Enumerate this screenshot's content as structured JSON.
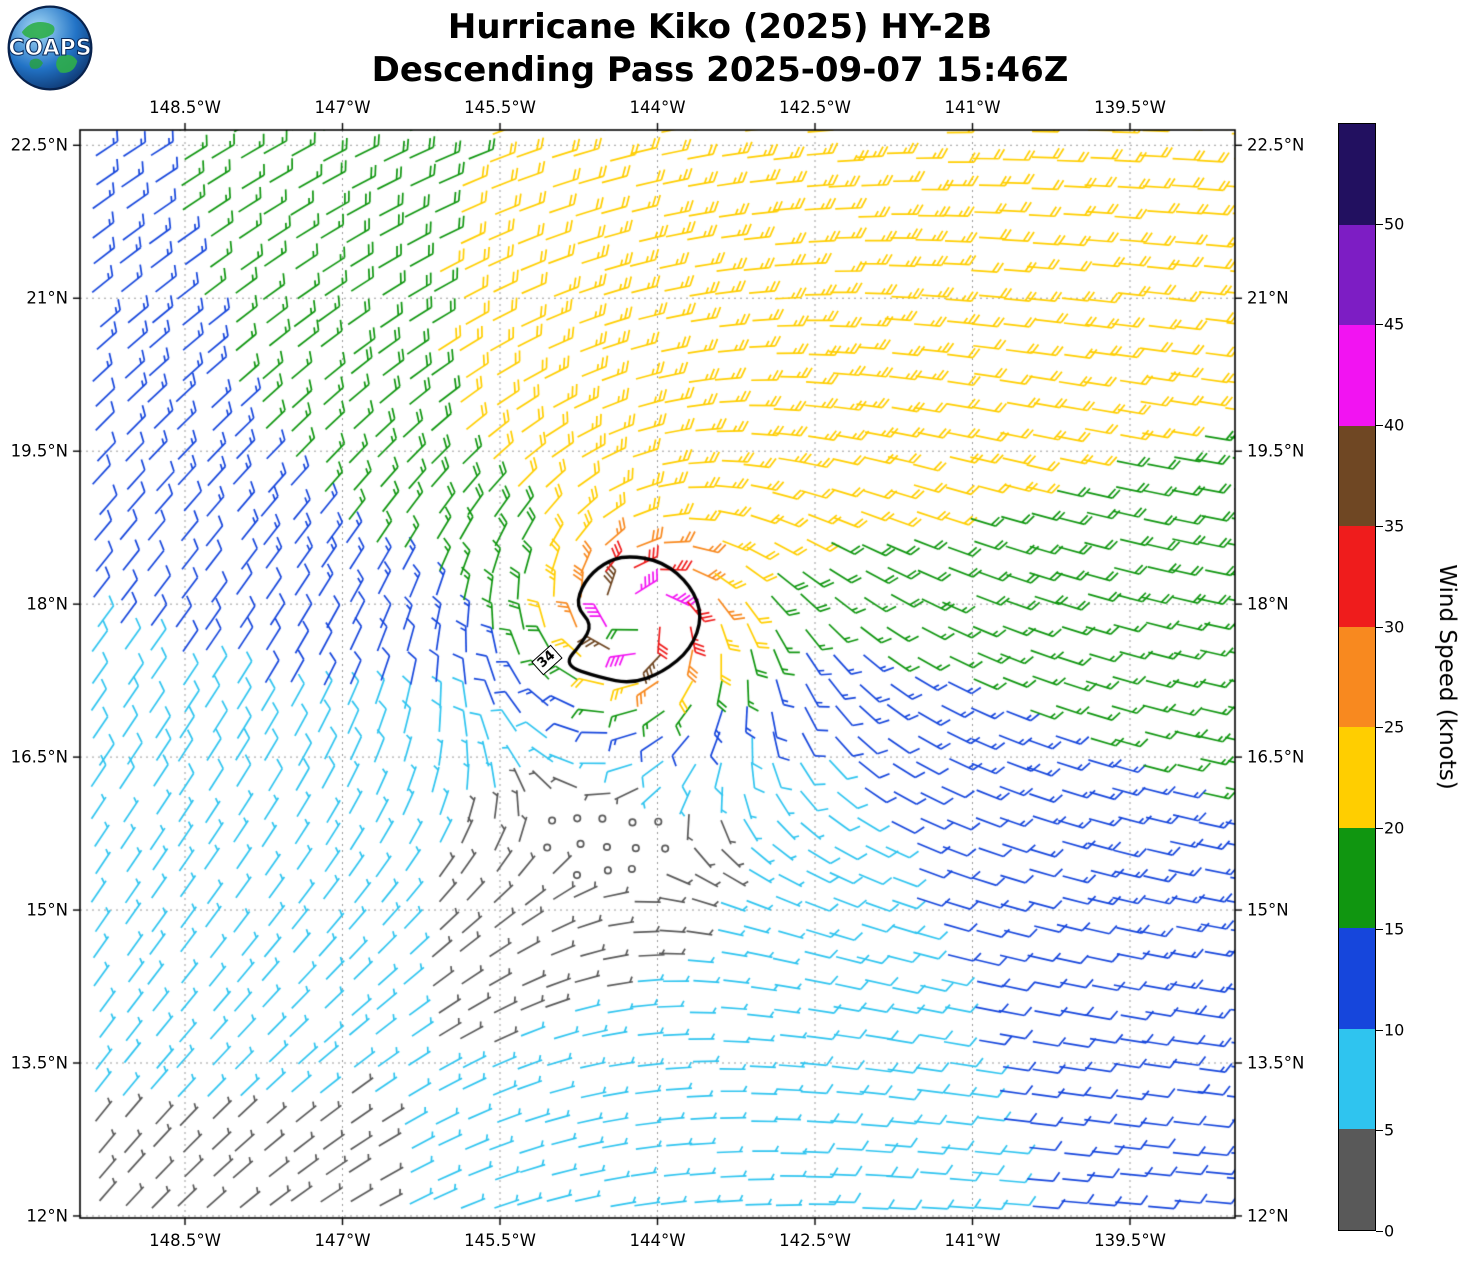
{
  "header": {
    "title_line1": "Hurricane Kiko (2025) HY-2B",
    "title_line2": "Descending Pass 2025-09-07 15:46Z"
  },
  "logo": {
    "text": "COAPS"
  },
  "axes": {
    "lon_range": [
      -149.5,
      -138.5
    ],
    "lat_range": [
      11.98,
      22.65
    ],
    "lon_ticks": [
      {
        "value": -148.5,
        "label": "148.5°W"
      },
      {
        "value": -147.0,
        "label": "147°W"
      },
      {
        "value": -145.5,
        "label": "145.5°W"
      },
      {
        "value": -144.0,
        "label": "144°W"
      },
      {
        "value": -142.5,
        "label": "142.5°W"
      },
      {
        "value": -141.0,
        "label": "141°W"
      },
      {
        "value": -139.5,
        "label": "139.5°W"
      }
    ],
    "lat_ticks": [
      {
        "value": 22.5,
        "label": "22.5°N"
      },
      {
        "value": 21.0,
        "label": "21°N"
      },
      {
        "value": 19.5,
        "label": "19.5°N"
      },
      {
        "value": 18.0,
        "label": "18°N"
      },
      {
        "value": 16.5,
        "label": "16.5°N"
      },
      {
        "value": 15.0,
        "label": "15°N"
      },
      {
        "value": 13.5,
        "label": "13.5°N"
      },
      {
        "value": 12.0,
        "label": "12°N"
      }
    ],
    "grid_on": true
  },
  "colorbar": {
    "label": "Wind Speed (knots)",
    "max": 55,
    "ticks": [
      {
        "value": 0,
        "label": "0"
      },
      {
        "value": 5,
        "label": "5"
      },
      {
        "value": 10,
        "label": "10"
      },
      {
        "value": 15,
        "label": "15"
      },
      {
        "value": 20,
        "label": "20"
      },
      {
        "value": 25,
        "label": "25"
      },
      {
        "value": 30,
        "label": "30"
      },
      {
        "value": 35,
        "label": "35"
      },
      {
        "value": 40,
        "label": "40"
      },
      {
        "value": 45,
        "label": "45"
      },
      {
        "value": 50,
        "label": "50"
      }
    ],
    "segments": [
      {
        "from": 0,
        "to": 5,
        "color": "#595959"
      },
      {
        "from": 5,
        "to": 10,
        "color": "#2fc4ef"
      },
      {
        "from": 10,
        "to": 15,
        "color": "#1646dc"
      },
      {
        "from": 15,
        "to": 20,
        "color": "#109610"
      },
      {
        "from": 20,
        "to": 25,
        "color": "#ffce00"
      },
      {
        "from": 25,
        "to": 30,
        "color": "#f8891f"
      },
      {
        "from": 30,
        "to": 35,
        "color": "#ef1c1c"
      },
      {
        "from": 35,
        "to": 40,
        "color": "#6f4723"
      },
      {
        "from": 40,
        "to": 45,
        "color": "#f213f2"
      },
      {
        "from": 45,
        "to": 50,
        "color": "#7d1dc4"
      },
      {
        "from": 50,
        "to": 55,
        "color": "#221060"
      }
    ]
  },
  "chart_data": {
    "type": "wind_barb_map",
    "title": "Hurricane Kiko (2025) HY-2B Descending Pass 2025-09-07 15:46Z",
    "units": "knots",
    "storm_center": {
      "lon": -144.15,
      "lat": 17.85
    },
    "speed_bins_kt": [
      0,
      5,
      10,
      15,
      20,
      25,
      30,
      35,
      40,
      45,
      50,
      55
    ],
    "bin_colors": [
      "#595959",
      "#2fc4ef",
      "#1646dc",
      "#109610",
      "#ffce00",
      "#f8891f",
      "#ef1c1c",
      "#6f4723",
      "#f213f2",
      "#7d1dc4",
      "#221060"
    ],
    "contour": {
      "value": 34,
      "label": "34",
      "label_pos": [
        -145.05,
        17.45
      ],
      "label_rotation_deg": -42,
      "points": [
        [
          -144.3,
          18.48
        ],
        [
          -143.95,
          18.42
        ],
        [
          -143.68,
          18.18
        ],
        [
          -143.57,
          17.88
        ],
        [
          -143.68,
          17.56
        ],
        [
          -143.95,
          17.33
        ],
        [
          -144.25,
          17.22
        ],
        [
          -144.55,
          17.28
        ],
        [
          -144.9,
          17.4
        ],
        [
          -144.72,
          17.62
        ],
        [
          -144.62,
          17.8
        ],
        [
          -144.78,
          17.98
        ],
        [
          -144.7,
          18.22
        ],
        [
          -144.52,
          18.4
        ]
      ]
    },
    "grid": {
      "lon_start": -149.35,
      "lon_step": 0.27,
      "cols": 41,
      "lat_start": 12.12,
      "lat_step": 0.27,
      "rows": 40,
      "jitter_deg": 0.09
    },
    "wind_model": {
      "type": "rankine_vortex_plus_easterly_background",
      "vmax_kt": 48,
      "rmax_deg": 0.28,
      "decay_exp": 0.7,
      "inflow_deg": 18,
      "north_asymmetry": 0.35,
      "env_base_kt": 6,
      "env_lat_coef": 0.3,
      "env_lat_ref": 12,
      "env_lon_coef": 0.7,
      "env_lon_ref": -149.5,
      "env_v_kt": -2,
      "env_damp_deg": 1.8,
      "barb_interval_kt": 5,
      "calm_threshold_kt": 2.5
    }
  }
}
